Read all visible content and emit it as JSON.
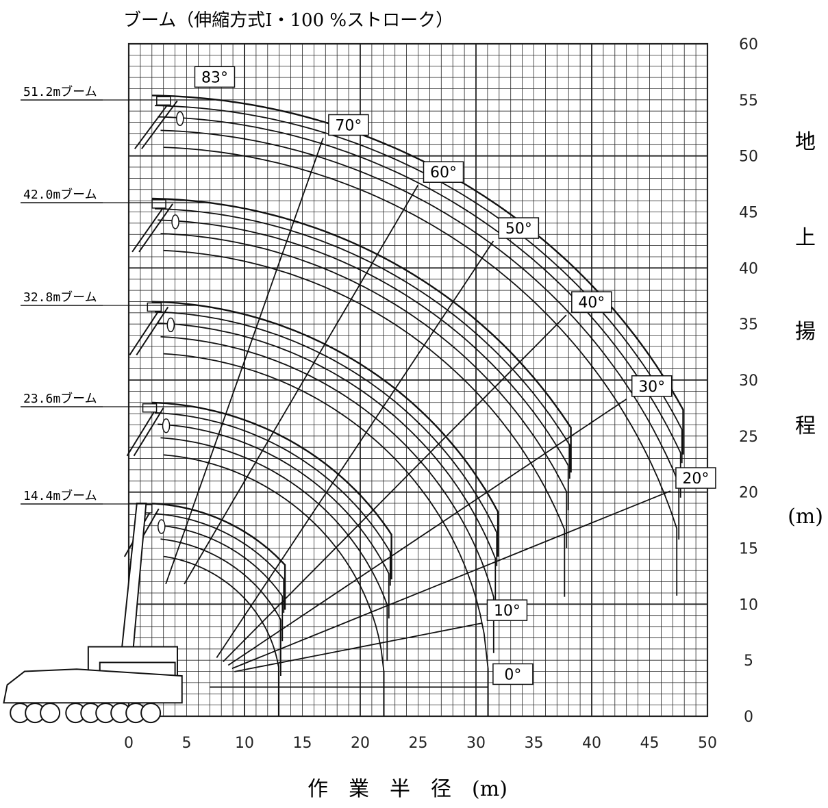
{
  "chart_data": {
    "type": "line",
    "title": "ブーム（伸縮方式Ⅰ・100 %ストローク）",
    "xlabel": "作　業　半　径　(m)",
    "ylabel_chars": [
      "地",
      "上",
      "揚",
      "程",
      "(m)"
    ],
    "xlim": [
      0,
      50
    ],
    "ylim": [
      0,
      60
    ],
    "x_ticks": [
      "0",
      "5",
      "10",
      "15",
      "20",
      "25",
      "30",
      "35",
      "40",
      "45",
      "50"
    ],
    "y_ticks": [
      "0",
      "5",
      "10",
      "15",
      "20",
      "25",
      "30",
      "35",
      "40",
      "45",
      "50",
      "55",
      "60"
    ],
    "grid": true,
    "y_axis_side": "right",
    "boom_pivot": [
      1.2,
      2.5
    ],
    "series": [
      {
        "name": "14.4mブーム",
        "length": 14.4,
        "tip_height": 19.0,
        "max_radius": 13.5
      },
      {
        "name": "23.6mブーム",
        "length": 23.6,
        "tip_height": 28.0,
        "max_radius": 22.7
      },
      {
        "name": "32.8mブーム",
        "length": 32.8,
        "tip_height": 37.0,
        "max_radius": 31.9
      },
      {
        "name": "42.0mブーム",
        "length": 42.0,
        "tip_height": 46.2,
        "max_radius": 38.2
      },
      {
        "name": "51.2mブーム",
        "length": 51.2,
        "tip_height": 55.4,
        "max_radius": 47.9
      }
    ],
    "angle_lines": [
      {
        "label": "0°",
        "angle": 0,
        "end": [
          31.0,
          2.6
        ]
      },
      {
        "label": "10°",
        "angle": 10,
        "end": [
          30.5,
          8.3
        ]
      },
      {
        "label": "20°",
        "angle": 20,
        "end": [
          46.8,
          20.1
        ]
      },
      {
        "label": "30°",
        "angle": 30,
        "end": [
          43.0,
          28.3
        ]
      },
      {
        "label": "40°",
        "angle": 40,
        "end": [
          37.8,
          35.8
        ]
      },
      {
        "label": "50°",
        "angle": 50,
        "end": [
          31.5,
          42.4
        ]
      },
      {
        "label": "60°",
        "angle": 60,
        "end": [
          25.0,
          47.4
        ]
      },
      {
        "label": "70°",
        "angle": 70,
        "end": [
          16.8,
          51.6
        ]
      },
      {
        "label": "83°",
        "angle": 83,
        "end": [
          6.3,
          55.4
        ]
      }
    ],
    "colors": {
      "line": "#111111",
      "grid": "#222222",
      "background": "#ffffff"
    }
  }
}
